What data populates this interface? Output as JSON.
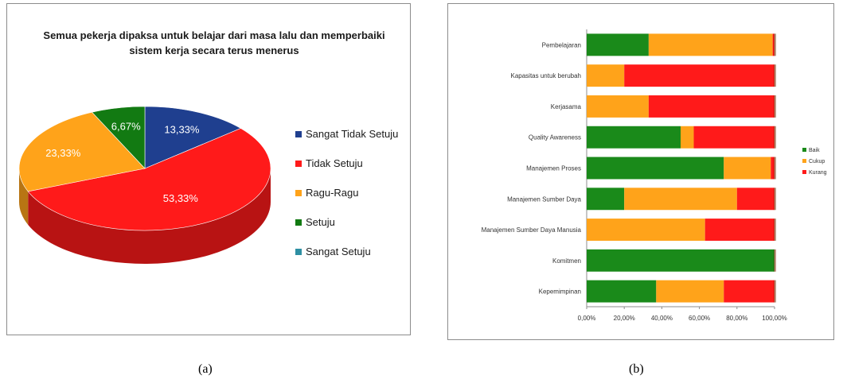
{
  "chart_data": [
    {
      "type": "pie",
      "title": "Semua pekerja dipaksa untuk belajar dari masa lalu dan memperbaiki sistem kerja  secara terus  menerus",
      "categories": [
        "Sangat Tidak Setuju",
        "Tidak Setuju",
        "Ragu-Ragu",
        "Setuju",
        "Sangat Setuju"
      ],
      "values": [
        13.33,
        53.33,
        23.33,
        6.67,
        0
      ],
      "data_labels": [
        "13,33%",
        "53,33%",
        "23,33%",
        "6,67%",
        ""
      ],
      "colors": [
        "#1f3f8f",
        "#ff1a1a",
        "#ffa31a",
        "#127a12",
        "#2e8fa3"
      ],
      "legend_position": "right"
    },
    {
      "type": "bar",
      "orientation": "horizontal",
      "stacked": true,
      "categories": [
        "Pembelajaran",
        "Kapasitas untuk berubah",
        "Kerjasama",
        "Quality Awareness",
        "Manajemen Proses",
        "Manajemen Sumber Daya",
        "Manajemen Sumber Daya Manusia",
        "Komitmen",
        "Kepemimpinan"
      ],
      "series": [
        {
          "name": "Baik",
          "color": "#1a8a1a",
          "values": [
            33,
            0,
            0,
            50,
            73,
            20,
            0,
            100,
            37
          ]
        },
        {
          "name": "Cukup",
          "color": "#ffa31a",
          "values": [
            66,
            20,
            33,
            7,
            25,
            60,
            63,
            0,
            36
          ]
        },
        {
          "name": "Kurang",
          "color": "#ff1a1a",
          "values": [
            1,
            80,
            67,
            43,
            2,
            20,
            37,
            0,
            27
          ]
        }
      ],
      "xlim": [
        0,
        100
      ],
      "xticks": [
        "0,00%",
        "20,00%",
        "40,00%",
        "60,00%",
        "80,00%",
        "100,00%"
      ],
      "legend_position": "right"
    }
  ],
  "captions": {
    "a": "(a)",
    "b": "(b)"
  }
}
